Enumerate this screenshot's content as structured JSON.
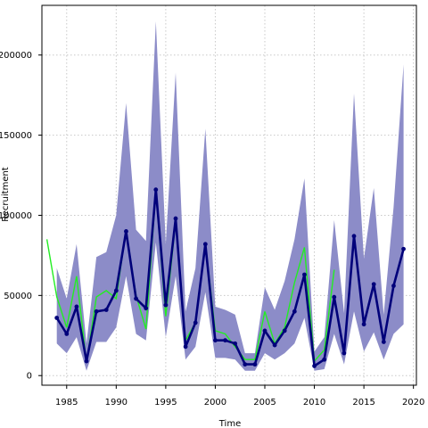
{
  "chart_data": {
    "type": "line",
    "xlabel": "Time",
    "ylabel": "Recruitment",
    "xlim": [
      1982.5,
      2020.3
    ],
    "ylim": [
      -6000,
      231000
    ],
    "xticks": [
      1985,
      1990,
      1995,
      2000,
      2005,
      2010,
      2015,
      2020
    ],
    "yticks": [
      0,
      50000,
      100000,
      150000,
      200000
    ],
    "grid": true,
    "colors": {
      "band": "#8c8cc8",
      "estimate": "#00007a",
      "reference": "#22ee22"
    },
    "band": {
      "x": [
        1984,
        1985,
        1986,
        1987,
        1988,
        1989,
        1990,
        1991,
        1992,
        1993,
        1994,
        1995,
        1996,
        1997,
        1998,
        1999,
        2000,
        2001,
        2002,
        2003,
        2004,
        2005,
        2006,
        2007,
        2008,
        2009,
        2010,
        2011,
        2012,
        2013,
        2014,
        2015,
        2016,
        2017,
        2018,
        2019
      ],
      "lower": [
        20000,
        14000,
        24000,
        3000,
        21000,
        21000,
        30000,
        62000,
        26000,
        22000,
        83000,
        24000,
        62000,
        10000,
        18000,
        52000,
        11000,
        11000,
        10000,
        3000,
        3000,
        14000,
        10000,
        14000,
        20000,
        36000,
        3000,
        4000,
        26000,
        7000,
        40000,
        15000,
        27000,
        10000,
        26000,
        32000
      ],
      "upper": [
        67000,
        48000,
        82000,
        20000,
        74000,
        77000,
        100000,
        170000,
        91000,
        84000,
        221000,
        82000,
        189000,
        40000,
        67000,
        154000,
        43000,
        41000,
        38000,
        14000,
        14000,
        55000,
        41000,
        59000,
        85000,
        123000,
        15000,
        24000,
        97000,
        39000,
        176000,
        73000,
        117000,
        38000,
        105000,
        194000
      ]
    },
    "series": [
      {
        "x": [
          1984,
          1985,
          1986,
          1987,
          1988,
          1989,
          1990,
          1991,
          1992,
          1993,
          1994,
          1995,
          1996,
          1997,
          1998,
          1999,
          2000,
          2001,
          2002,
          2003,
          2004,
          2005,
          2006,
          2007,
          2008,
          2009,
          2010,
          2011,
          2012,
          2013,
          2014,
          2015,
          2016,
          2017,
          2018,
          2019
        ],
        "values": [
          36000,
          26000,
          43000,
          9000,
          40000,
          41000,
          53000,
          90000,
          48000,
          42000,
          116000,
          44000,
          98000,
          18000,
          33000,
          82000,
          22000,
          22000,
          20000,
          7000,
          7000,
          28000,
          19000,
          28000,
          40000,
          63000,
          6000,
          10000,
          49000,
          14000,
          87000,
          32000,
          57000,
          21000,
          56000,
          79000
        ]
      },
      {
        "x": [
          1983,
          1984,
          1985,
          1986,
          1987,
          1988,
          1989,
          1990,
          1991,
          1992,
          1993,
          1994,
          1995,
          1996,
          1997,
          1998,
          1999,
          2000,
          2001,
          2002,
          2003,
          2004,
          2005,
          2006,
          2007,
          2008,
          2009,
          2010,
          2011,
          2012
        ],
        "values": [
          85000,
          49000,
          30000,
          62000,
          8000,
          49000,
          53000,
          48000,
          91000,
          50000,
          29000,
          115000,
          37000,
          96000,
          22000,
          33000,
          83000,
          28000,
          26000,
          18000,
          10000,
          10000,
          40000,
          20000,
          30000,
          58000,
          80000,
          9000,
          16000,
          66000
        ]
      }
    ]
  }
}
